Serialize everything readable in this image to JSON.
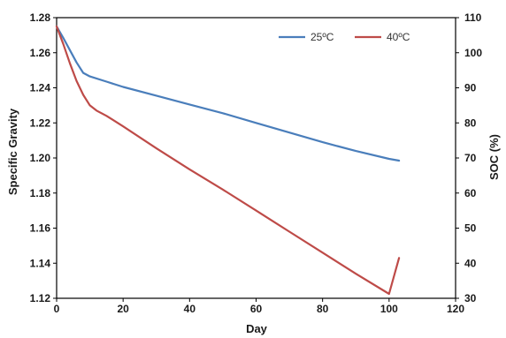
{
  "chart_data": {
    "type": "line",
    "title": "",
    "xlabel": "Day",
    "ylabel": "Specific Gravity",
    "y2label": "SOC (%)",
    "xlim": [
      0,
      120
    ],
    "ylim": [
      1.12,
      1.28
    ],
    "y2lim": [
      30,
      110
    ],
    "x_ticks": [
      "0",
      "20",
      "40",
      "60",
      "80",
      "100",
      "120"
    ],
    "y_ticks": [
      "1.12",
      "1.14",
      "1.16",
      "1.18",
      "1.20",
      "1.22",
      "1.24",
      "1.26",
      "1.28"
    ],
    "y2_ticks": [
      "30",
      "40",
      "50",
      "60",
      "70",
      "80",
      "90",
      "100",
      "110"
    ],
    "grid": false,
    "legend_position": "top-right",
    "series": [
      {
        "name": "25ºC",
        "color": "#4a7ebb",
        "x": [
          0,
          2,
          4,
          6,
          8,
          10,
          15,
          20,
          30,
          40,
          50,
          60,
          70,
          80,
          90,
          100,
          103
        ],
        "y": [
          1.275,
          1.2685,
          1.2615,
          1.2545,
          1.2485,
          1.2465,
          1.2435,
          1.2405,
          1.2355,
          1.2305,
          1.2255,
          1.22,
          1.2145,
          1.209,
          1.204,
          1.1995,
          1.1985
        ]
      },
      {
        "name": "40ºC",
        "color": "#be4b48",
        "x": [
          0,
          2,
          4,
          6,
          8,
          10,
          12,
          15,
          20,
          30,
          40,
          50,
          60,
          70,
          80,
          90,
          100,
          103
        ],
        "y": [
          1.275,
          1.265,
          1.254,
          1.244,
          1.236,
          1.23,
          1.227,
          1.224,
          1.218,
          1.2055,
          1.1935,
          1.182,
          1.17,
          1.158,
          1.146,
          1.134,
          1.1225,
          1.143
        ]
      }
    ]
  }
}
